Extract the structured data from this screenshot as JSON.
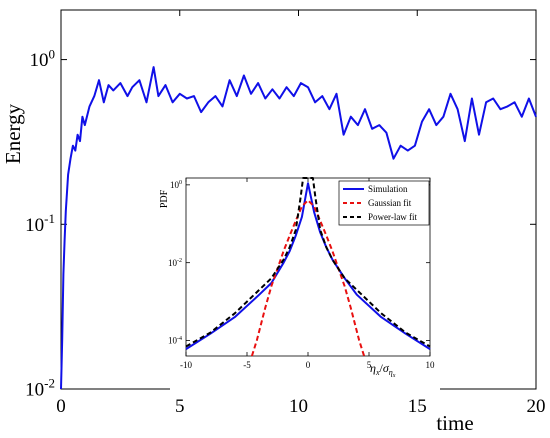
{
  "chart_data": [
    {
      "type": "line",
      "scale": "log-y",
      "xlabel": "time",
      "ylabel": "Energy",
      "xlim": [
        0,
        20
      ],
      "ylim": [
        0.01,
        2
      ],
      "x_ticks": [
        0,
        5,
        10,
        15,
        20
      ],
      "x_tick_labels": [
        "0",
        "5",
        "10",
        "15",
        "20"
      ],
      "y_ticks": [
        0.01,
        0.1,
        1
      ],
      "y_tick_labels": [
        {
          "base": "10",
          "exp": "-2"
        },
        {
          "base": "10",
          "exp": "-1"
        },
        {
          "base": "10",
          "exp": "0"
        }
      ],
      "grid": false,
      "series": [
        {
          "color": "#1010e8",
          "x": [
            0.0,
            0.05,
            0.1,
            0.15,
            0.2,
            0.3,
            0.4,
            0.5,
            0.6,
            0.7,
            0.8,
            0.9,
            1.0,
            1.2,
            1.4,
            1.6,
            1.8,
            2.0,
            2.2,
            2.5,
            2.8,
            3.0,
            3.3,
            3.6,
            3.9,
            4.1,
            4.4,
            4.7,
            5.0,
            5.3,
            5.6,
            5.9,
            6.2,
            6.5,
            6.8,
            7.1,
            7.4,
            7.7,
            8.0,
            8.3,
            8.6,
            8.9,
            9.2,
            9.5,
            9.8,
            10.1,
            10.4,
            10.7,
            11.0,
            11.3,
            11.6,
            11.9,
            12.2,
            12.5,
            12.8,
            13.1,
            13.4,
            13.7,
            14.0,
            14.3,
            14.6,
            14.9,
            15.2,
            15.5,
            15.8,
            16.1,
            16.4,
            16.7,
            17.0,
            17.3,
            17.6,
            17.9,
            18.2,
            18.5,
            18.8,
            19.1,
            19.4,
            19.7,
            20.0
          ],
          "values": [
            0.01,
            0.02,
            0.05,
            0.08,
            0.12,
            0.2,
            0.25,
            0.3,
            0.28,
            0.35,
            0.32,
            0.45,
            0.4,
            0.52,
            0.6,
            0.75,
            0.55,
            0.7,
            0.65,
            0.72,
            0.6,
            0.68,
            0.75,
            0.55,
            0.9,
            0.6,
            0.7,
            0.55,
            0.62,
            0.58,
            0.6,
            0.48,
            0.55,
            0.6,
            0.52,
            0.75,
            0.6,
            0.8,
            0.62,
            0.72,
            0.58,
            0.66,
            0.58,
            0.68,
            0.6,
            0.72,
            0.68,
            0.55,
            0.6,
            0.5,
            0.62,
            0.35,
            0.45,
            0.4,
            0.5,
            0.38,
            0.4,
            0.36,
            0.25,
            0.3,
            0.28,
            0.3,
            0.42,
            0.5,
            0.4,
            0.45,
            0.62,
            0.5,
            0.32,
            0.58,
            0.35,
            0.55,
            0.58,
            0.5,
            0.52,
            0.55,
            0.45,
            0.58,
            0.45
          ]
        }
      ]
    },
    {
      "type": "line",
      "scale": "log-y",
      "ylabel": "PDF",
      "xlabel": {
        "eta": "η",
        "sub1": "x",
        "slash": "/",
        "sigma": "σ",
        "sub2": "η",
        "sub3": "x"
      },
      "xlim": [
        -10,
        10
      ],
      "ylim": [
        4e-05,
        1.5
      ],
      "x_ticks": [
        -10,
        -5,
        0,
        5,
        10
      ],
      "x_tick_labels": [
        "-10",
        "-5",
        "0",
        "5",
        "10"
      ],
      "y_ticks": [
        0.0001,
        0.01,
        1
      ],
      "y_tick_labels": [
        {
          "base": "10",
          "exp": "-4"
        },
        {
          "base": "10",
          "exp": "-2"
        },
        {
          "base": "10",
          "exp": "0"
        }
      ],
      "legend_position": "top-right",
      "series": [
        {
          "name": "Simulation",
          "color": "#1010e8",
          "style": "solid",
          "x": [
            -10,
            -8,
            -6,
            -4,
            -3,
            -2,
            -1.5,
            -1,
            -0.5,
            0,
            0.5,
            1,
            1.5,
            2,
            3,
            4,
            6,
            8,
            10
          ],
          "values": [
            6e-05,
            0.00015,
            0.0004,
            0.0015,
            0.003,
            0.01,
            0.02,
            0.05,
            0.15,
            1.1,
            0.2,
            0.06,
            0.025,
            0.012,
            0.004,
            0.0015,
            0.0004,
            0.00015,
            6e-05
          ]
        },
        {
          "name": "Gaussian fit",
          "color": "#e81010",
          "style": "dashed",
          "x": [
            -4.6,
            -4.2,
            -3.5,
            -3.0,
            -2.5,
            -2,
            -1.5,
            -1,
            -0.5,
            0,
            0.5,
            1,
            1.5,
            2,
            2.5,
            3.0,
            3.5,
            4.2,
            4.6
          ],
          "values": [
            4e-05,
            0.0001,
            0.0007,
            0.0025,
            0.007,
            0.02,
            0.05,
            0.12,
            0.28,
            0.4,
            0.28,
            0.12,
            0.05,
            0.02,
            0.007,
            0.0025,
            0.0007,
            0.0001,
            4e-05
          ]
        },
        {
          "name": "Power-law fit",
          "color": "#000000",
          "style": "dashed",
          "x": [
            -10,
            -8,
            -6,
            -4,
            -3,
            -2,
            -1.5,
            -1,
            -0.6,
            -0.4,
            0.4,
            0.6,
            1,
            1.5,
            2,
            3,
            4,
            6,
            8,
            10
          ],
          "values": [
            7e-05,
            0.00016,
            0.0005,
            0.002,
            0.004,
            0.012,
            0.025,
            0.07,
            0.5,
            1.5,
            1.5,
            0.5,
            0.07,
            0.025,
            0.012,
            0.004,
            0.002,
            0.0005,
            0.00016,
            7e-05
          ]
        }
      ]
    }
  ]
}
